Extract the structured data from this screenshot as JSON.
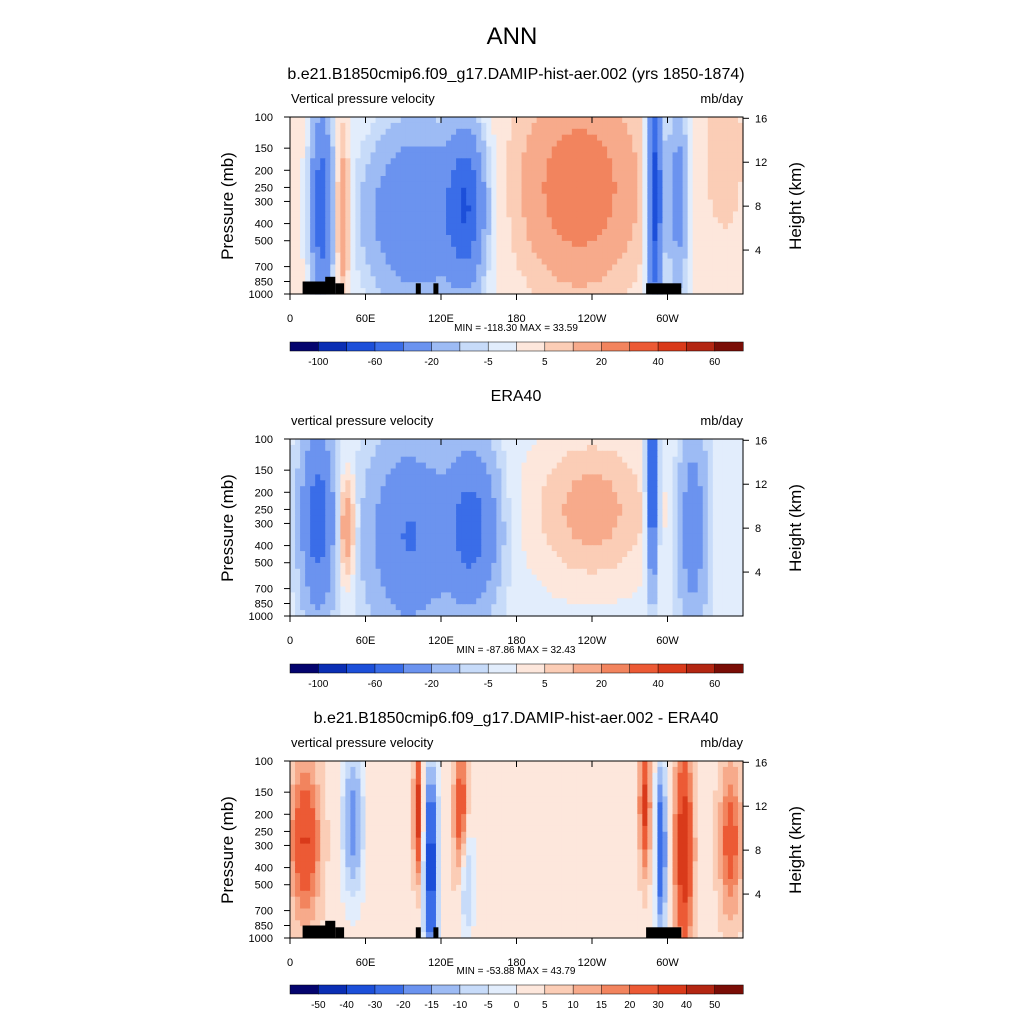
{
  "figure": {
    "title": "ANN"
  },
  "chart_data": [
    {
      "type": "heatmap",
      "title": "b.e21.B1850cmip6.f09_g17.DAMIP-hist-aer.002 (yrs 1850-1874)",
      "left_label": "Vertical pressure velocity",
      "right_label": "mb/day",
      "ylabel": "Pressure (mb)",
      "y2label": "Height (km)",
      "x_ticks": [
        "0",
        "60E",
        "120E",
        "180",
        "120W",
        "60W"
      ],
      "y_ticks": [
        "100",
        "150",
        "200",
        "250",
        "300",
        "400",
        "500",
        "700",
        "850",
        "1000"
      ],
      "y2_ticks": [
        "16",
        "12",
        "8",
        "4"
      ],
      "stats": "MIN = -118.30  MAX =  33.59",
      "colorbar_labels": [
        "-100",
        "-60",
        "-20",
        "-5",
        "5",
        "20",
        "40",
        "60"
      ],
      "colorbar_colors": [
        "#04046e",
        "#0a2eb4",
        "#1c4fd9",
        "#3a6de8",
        "#6b93ef",
        "#9dbbf4",
        "#c7dbf9",
        "#e2edfc",
        "#fde7dc",
        "#fbcdb6",
        "#f7aa8b",
        "#f2845e",
        "#ec5a35",
        "#d93a1a",
        "#b32612",
        "#7a0d06"
      ]
    },
    {
      "type": "heatmap",
      "title": "ERA40",
      "left_label": "vertical pressure velocity",
      "right_label": "mb/day",
      "ylabel": "Pressure (mb)",
      "y2label": "Height (km)",
      "x_ticks": [
        "0",
        "60E",
        "120E",
        "180",
        "120W",
        "60W"
      ],
      "y_ticks": [
        "100",
        "150",
        "200",
        "250",
        "300",
        "400",
        "500",
        "700",
        "850",
        "1000"
      ],
      "y2_ticks": [
        "16",
        "12",
        "8",
        "4"
      ],
      "stats": "MIN = -87.86  MAX =  32.43",
      "colorbar_labels": [
        "-100",
        "-60",
        "-20",
        "-5",
        "5",
        "20",
        "40",
        "60"
      ],
      "colorbar_colors": [
        "#04046e",
        "#0a2eb4",
        "#1c4fd9",
        "#3a6de8",
        "#6b93ef",
        "#9dbbf4",
        "#c7dbf9",
        "#e2edfc",
        "#fde7dc",
        "#fbcdb6",
        "#f7aa8b",
        "#f2845e",
        "#ec5a35",
        "#d93a1a",
        "#b32612",
        "#7a0d06"
      ]
    },
    {
      "type": "heatmap",
      "title": "b.e21.B1850cmip6.f09_g17.DAMIP-hist-aer.002 - ERA40",
      "left_label": "vertical pressure velocity",
      "right_label": "mb/day",
      "ylabel": "Pressure (mb)",
      "y2label": "Height (km)",
      "x_ticks": [
        "0",
        "60E",
        "120E",
        "180",
        "120W",
        "60W"
      ],
      "y_ticks": [
        "100",
        "150",
        "200",
        "250",
        "300",
        "400",
        "500",
        "700",
        "850",
        "1000"
      ],
      "y2_ticks": [
        "16",
        "12",
        "8",
        "4"
      ],
      "stats": "MIN = -53.88  MAX =  43.79",
      "colorbar_labels": [
        "-50",
        "-40",
        "-30",
        "-20",
        "-15",
        "-10",
        "-5",
        "0",
        "5",
        "10",
        "15",
        "20",
        "30",
        "40",
        "50"
      ],
      "colorbar_colors": [
        "#04046e",
        "#0a2eb4",
        "#1c4fd9",
        "#3a6de8",
        "#6b93ef",
        "#9dbbf4",
        "#c7dbf9",
        "#e2edfc",
        "#fde7dc",
        "#fbcdb6",
        "#f7aa8b",
        "#f2845e",
        "#ec5a35",
        "#d93a1a",
        "#b32612",
        "#7a0d06"
      ]
    }
  ]
}
